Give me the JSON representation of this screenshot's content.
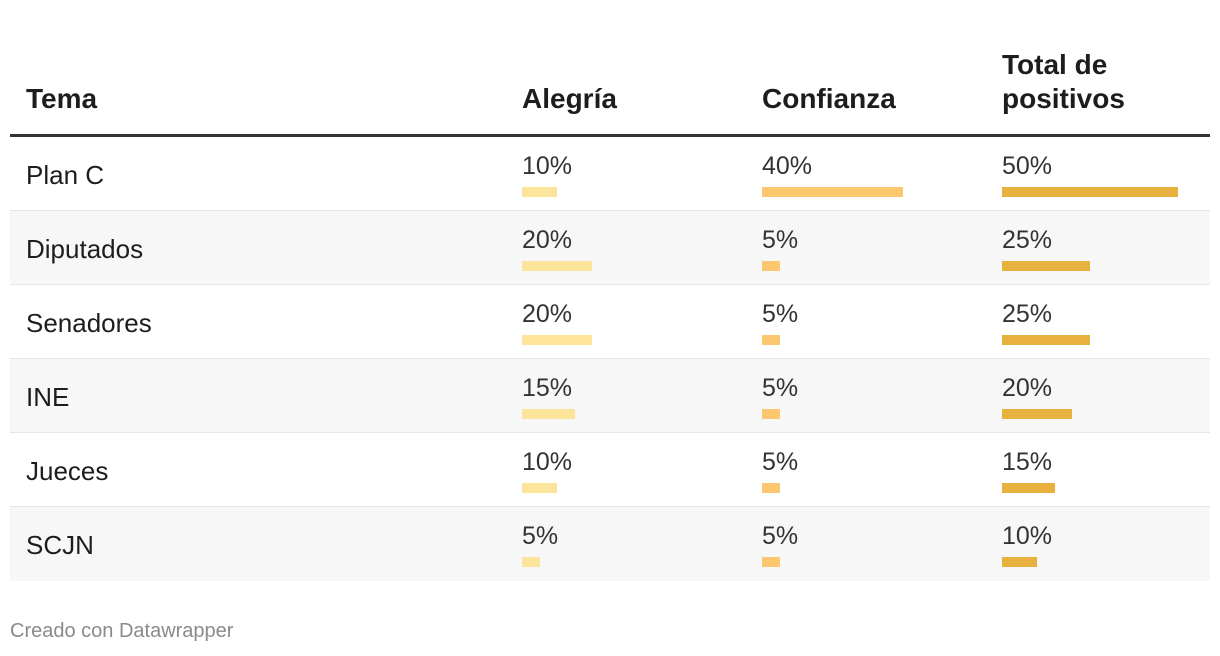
{
  "colors": {
    "alegria": "#fde49b",
    "confianza": "#fbc76f",
    "total": "#e8b13f"
  },
  "chart_data": {
    "type": "table",
    "columns": [
      "Tema",
      "Alegría",
      "Confianza",
      "Total de\npositivos"
    ],
    "rows": [
      {
        "tema": "Plan C",
        "alegria": 10,
        "confianza": 40,
        "total": 50
      },
      {
        "tema": "Diputados",
        "alegria": 20,
        "confianza": 5,
        "total": 25
      },
      {
        "tema": "Senadores",
        "alegria": 20,
        "confianza": 5,
        "total": 25
      },
      {
        "tema": "INE",
        "alegria": 15,
        "confianza": 5,
        "total": 20
      },
      {
        "tema": "Jueces",
        "alegria": 10,
        "confianza": 5,
        "total": 15
      },
      {
        "tema": "SCJN",
        "alegria": 5,
        "confianza": 5,
        "total": 10
      }
    ],
    "unit": "%"
  },
  "footer": "Creado con Datawrapper"
}
